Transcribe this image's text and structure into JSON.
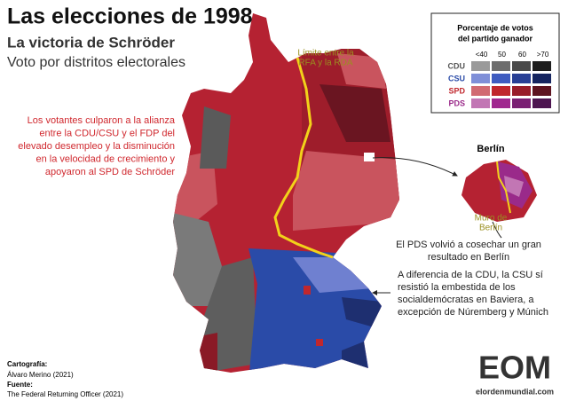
{
  "header": {
    "title": "Las elecciones de 1998",
    "subtitle": "La victoria de Schröder",
    "description": "Voto por distritos electorales"
  },
  "legend": {
    "title": [
      "Porcentaje de votos",
      "del partido ganador"
    ],
    "bins": [
      "<40",
      "50",
      "60",
      ">70"
    ],
    "parties": [
      {
        "name": "CDU",
        "color": "#555555",
        "colors": [
          "#9a9a9a",
          "#6e6e6e",
          "#4a4a4a",
          "#1e1e1e"
        ]
      },
      {
        "name": "CSU",
        "color": "#2a4ba8",
        "colors": [
          "#7f8fd8",
          "#3f5cc0",
          "#283f95",
          "#162560"
        ]
      },
      {
        "name": "SPD",
        "color": "#c0272d",
        "colors": [
          "#d16a72",
          "#c0272d",
          "#981d2a",
          "#5e1420"
        ]
      },
      {
        "name": "PDS",
        "color": "#9a2a8a",
        "colors": [
          "#c276b4",
          "#a0288f",
          "#7a1f73",
          "#4d1550"
        ]
      }
    ]
  },
  "annotations": {
    "border": [
      "Límite entre la",
      "RFA y la RDA"
    ],
    "spd": [
      "Los votantes culparon a la alianza",
      "entre la CDU/CSU y el FDP del",
      "elevado desempleo y la disminución",
      "en la velocidad de crecimiento y",
      "apoyaron al SPD de Schröder"
    ],
    "berlin_title": "Berlín",
    "wall": [
      "Muro de",
      "Berlín"
    ],
    "pds": [
      "El PDS volvió a cosechar un gran",
      "resultado en Berlín"
    ],
    "csu": [
      "A diferencia de la CDU, la CSU sí",
      "resistió la embestida de los",
      "socialdemócratas en Baviera, a",
      "excepción de Núremberg y Múnich"
    ]
  },
  "credits": {
    "cartography_label": "Cartografía:",
    "cartography": "Álvaro Merino (2021)",
    "source_label": "Fuente:",
    "source": "The Federal Returning Officer (2021)"
  },
  "logo": {
    "mark": "EOM",
    "site": "elordenmundial.com"
  }
}
